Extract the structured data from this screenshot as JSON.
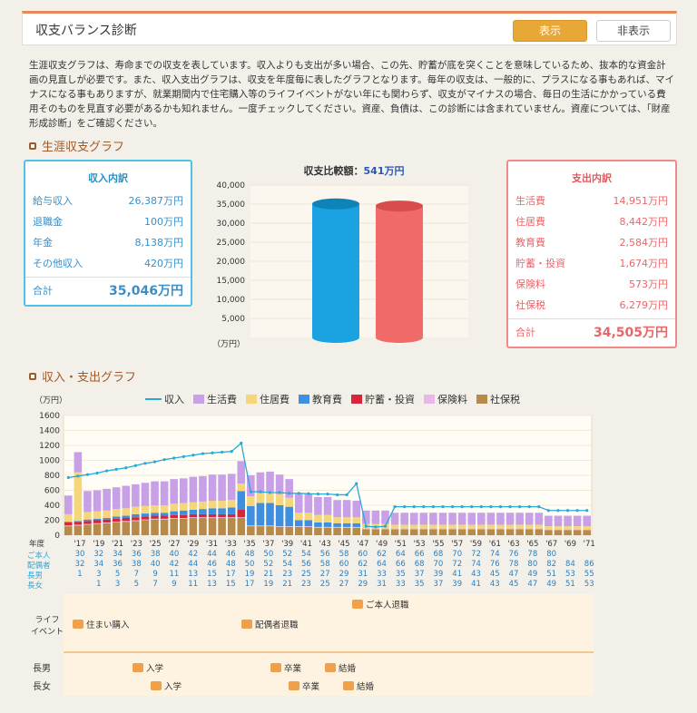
{
  "header": {
    "title": "収支バランス診断",
    "show_label": "表示",
    "hide_label": "非表示"
  },
  "intro": "生涯収支グラフは、寿命までの収支を表しています。収入よりも支出が多い場合、この先、貯蓄が底を突くことを意味しているため、抜本的な資金計画の見直しが必要です。また、収入支出グラフは、収支を年度毎に表したグラフとなります。毎年の収支は、一般的に、プラスになる事もあれば、マイナスになる事もありますが、就業期間内で住宅購入等のライフイベントがない年にも関わらず、収支がマイナスの場合、毎日の生活にかかっている費用そのものを見直す必要があるかも知れません。一度チェックしてください。資産、負債は、この診断には含まれていません。資産については、「財産形成診断」をご確認ください。",
  "section1": "生涯収支グラフ",
  "section2": "収入・支出グラフ",
  "income": {
    "title": "収入内訳",
    "rows": [
      {
        "label": "給与収入",
        "value": "26,387万円"
      },
      {
        "label": "退職金",
        "value": "100万円"
      },
      {
        "label": "年金",
        "value": "8,138万円"
      },
      {
        "label": "その他収入",
        "value": "420万円"
      }
    ],
    "total_label": "合計",
    "total_value": "35,046万円"
  },
  "expense": {
    "title": "支出内訳",
    "rows": [
      {
        "label": "生活費",
        "value": "14,951万円"
      },
      {
        "label": "住居費",
        "value": "8,442万円"
      },
      {
        "label": "教育費",
        "value": "2,584万円"
      },
      {
        "label": "貯蓄・投資",
        "value": "1,674万円"
      },
      {
        "label": "保険料",
        "value": "573万円"
      },
      {
        "label": "社保税",
        "value": "6,279万円"
      }
    ],
    "total_label": "合計",
    "total_value": "34,505万円"
  },
  "balance": {
    "label": "収支比較額：",
    "amount": "541万円",
    "unit": "（万円）"
  },
  "colors": {
    "income": "#1aa3e0",
    "expense": "#f06a6a",
    "living": "#c7a0e8",
    "housing": "#f5d67a",
    "education": "#3f8fe0",
    "saving": "#d8253a",
    "insurance": "#e8b8e8",
    "tax": "#b88a4a"
  },
  "chart_data": [
    {
      "type": "bar",
      "categories": [
        "収入",
        "支出"
      ],
      "values": [
        35046,
        34505
      ],
      "ylim": [
        0,
        40000
      ],
      "yticks": [
        "40,000",
        "35,000",
        "30,000",
        "25,000",
        "20,000",
        "15,000",
        "10,000",
        "5,000"
      ]
    },
    {
      "type": "bar",
      "stacked": true,
      "ylabel": "（万円）",
      "ylim": [
        0,
        1600
      ],
      "yticks": [
        "1600",
        "1400",
        "1200",
        "1000",
        "800",
        "600",
        "400",
        "200",
        "0"
      ],
      "legend": [
        "収入",
        "生活費",
        "住居費",
        "教育費",
        "貯蓄・投資",
        "保険料",
        "社保税"
      ],
      "xticks": [
        "'17",
        "'19",
        "'21",
        "'23",
        "'25",
        "'27",
        "'29",
        "'31",
        "'33",
        "'35",
        "'37",
        "'39",
        "'41",
        "'43",
        "'45",
        "'47",
        "'49",
        "'51",
        "'53",
        "'55",
        "'57",
        "'59",
        "'61",
        "'63",
        "'65",
        "'67",
        "'69",
        "'71"
      ],
      "income_line": [
        770,
        790,
        810,
        830,
        860,
        880,
        900,
        930,
        960,
        980,
        1010,
        1030,
        1050,
        1070,
        1090,
        1100,
        1110,
        1120,
        1230,
        580,
        580,
        570,
        570,
        560,
        560,
        555,
        550,
        550,
        540,
        540,
        690,
        120,
        110,
        120,
        380,
        380,
        380,
        380,
        380,
        380,
        380,
        380,
        380,
        380,
        380,
        380,
        380,
        380,
        380,
        380,
        330,
        330,
        330,
        330,
        330
      ],
      "living": [
        250,
        270,
        280,
        280,
        290,
        290,
        300,
        300,
        310,
        320,
        320,
        330,
        330,
        340,
        340,
        350,
        350,
        350,
        300,
        280,
        280,
        270,
        260,
        250,
        250,
        250,
        240,
        240,
        230,
        230,
        220,
        180,
        180,
        180,
        160,
        160,
        160,
        160,
        160,
        160,
        160,
        160,
        160,
        160,
        160,
        160,
        160,
        160,
        160,
        160,
        140,
        140,
        140,
        140,
        140
      ],
      "housing": [
        100,
        650,
        100,
        100,
        100,
        100,
        100,
        100,
        100,
        100,
        100,
        100,
        100,
        100,
        100,
        100,
        100,
        100,
        100,
        130,
        130,
        150,
        150,
        120,
        100,
        100,
        100,
        100,
        80,
        80,
        80,
        60,
        60,
        60,
        50,
        50,
        50,
        50,
        50,
        50,
        50,
        50,
        50,
        50,
        50,
        50,
        50,
        50,
        50,
        50,
        40,
        40,
        40,
        40,
        40
      ],
      "education": [
        10,
        10,
        20,
        20,
        20,
        30,
        30,
        40,
        40,
        40,
        40,
        50,
        60,
        60,
        70,
        80,
        80,
        90,
        250,
        260,
        300,
        300,
        280,
        260,
        80,
        80,
        60,
        60,
        50,
        50,
        50,
        0,
        0,
        0,
        0,
        0,
        0,
        0,
        0,
        0,
        0,
        0,
        0,
        0,
        0,
        0,
        0,
        0,
        0,
        0,
        0,
        0,
        0,
        0,
        0
      ],
      "saving": [
        40,
        40,
        40,
        40,
        40,
        40,
        40,
        40,
        40,
        40,
        40,
        40,
        40,
        40,
        40,
        40,
        40,
        40,
        100,
        0,
        0,
        0,
        0,
        0,
        0,
        0,
        0,
        0,
        0,
        0,
        0,
        0,
        0,
        0,
        0,
        0,
        0,
        0,
        0,
        0,
        0,
        0,
        0,
        0,
        0,
        0,
        0,
        0,
        0,
        0,
        0,
        0,
        0,
        0,
        0
      ],
      "insurance": [
        10,
        10,
        10,
        10,
        10,
        10,
        10,
        10,
        10,
        10,
        10,
        10,
        10,
        10,
        10,
        10,
        10,
        10,
        10,
        10,
        10,
        10,
        10,
        10,
        10,
        10,
        10,
        10,
        10,
        10,
        10,
        10,
        10,
        10,
        10,
        10,
        10,
        10,
        10,
        10,
        10,
        10,
        10,
        10,
        10,
        10,
        10,
        10,
        10,
        10,
        10,
        10,
        10,
        10,
        10
      ],
      "tax": [
        120,
        130,
        140,
        150,
        160,
        170,
        180,
        190,
        200,
        210,
        210,
        220,
        220,
        230,
        230,
        230,
        230,
        230,
        230,
        120,
        120,
        120,
        110,
        110,
        110,
        110,
        100,
        100,
        100,
        100,
        100,
        80,
        80,
        80,
        80,
        80,
        80,
        80,
        80,
        80,
        80,
        80,
        80,
        80,
        80,
        80,
        80,
        80,
        80,
        80,
        70,
        70,
        70,
        70,
        70
      ]
    }
  ],
  "age_table": {
    "labels": [
      "年度",
      "ご本人",
      "配偶者",
      "長男",
      "長女"
    ],
    "self": [
      "30",
      "32",
      "34",
      "36",
      "38",
      "40",
      "42",
      "44",
      "46",
      "48",
      "50",
      "52",
      "54",
      "56",
      "58",
      "60",
      "62",
      "64",
      "66",
      "68",
      "70",
      "72",
      "74",
      "76",
      "78",
      "80",
      "",
      ""
    ],
    "spouse": [
      "32",
      "34",
      "36",
      "38",
      "40",
      "42",
      "44",
      "46",
      "48",
      "50",
      "52",
      "54",
      "56",
      "58",
      "60",
      "62",
      "64",
      "66",
      "68",
      "70",
      "72",
      "74",
      "76",
      "78",
      "80",
      "82",
      "84",
      "86"
    ],
    "son": [
      "1",
      "3",
      "5",
      "7",
      "9",
      "11",
      "13",
      "15",
      "17",
      "19",
      "21",
      "23",
      "25",
      "27",
      "29",
      "31",
      "33",
      "35",
      "37",
      "39",
      "41",
      "43",
      "45",
      "47",
      "49",
      "51",
      "53",
      "55"
    ],
    "daughter": [
      "",
      "1",
      "3",
      "5",
      "7",
      "9",
      "11",
      "13",
      "15",
      "17",
      "19",
      "21",
      "23",
      "25",
      "27",
      "29",
      "31",
      "33",
      "35",
      "37",
      "39",
      "41",
      "43",
      "45",
      "47",
      "49",
      "51",
      "53"
    ]
  },
  "life": {
    "left_label_1": "ライフ",
    "left_label_2": "イベント",
    "son_label": "長男",
    "daughter_label": "長女",
    "events": {
      "house": "住まい購入",
      "spouse_retire": "配偶者退職",
      "self_retire": "ご本人退職",
      "son_enter": "入学",
      "son_grad": "卒業",
      "son_marry": "結婚",
      "dau_enter": "入学",
      "dau_grad": "卒業",
      "dau_marry": "結婚"
    }
  }
}
